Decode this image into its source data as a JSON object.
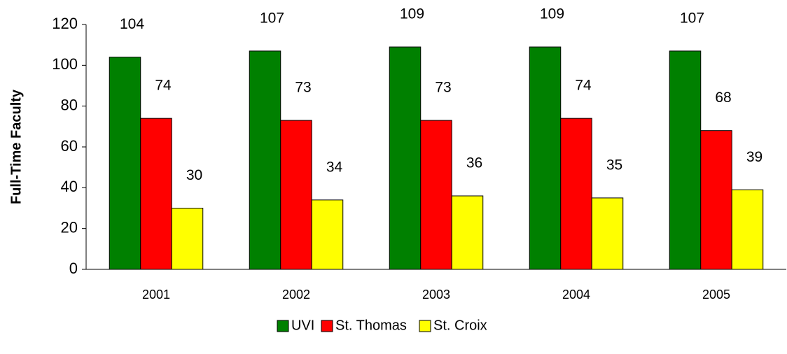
{
  "chart_data": {
    "type": "bar",
    "y_label": "Full-Time Faculty",
    "categories": [
      "2001",
      "2002",
      "2003",
      "2004",
      "2005"
    ],
    "series": [
      {
        "name": "UVI",
        "color": "#008000",
        "values": [
          104,
          107,
          109,
          109,
          107
        ]
      },
      {
        "name": "St. Thomas",
        "color": "#ff0000",
        "values": [
          74,
          73,
          73,
          74,
          68
        ]
      },
      {
        "name": "St. Croix",
        "color": "#ffff00",
        "values": [
          30,
          34,
          36,
          35,
          39
        ]
      }
    ],
    "ylim": [
      0,
      120
    ],
    "yticks": [
      0,
      20,
      40,
      60,
      80,
      100,
      120
    ],
    "legend": "bottom"
  }
}
